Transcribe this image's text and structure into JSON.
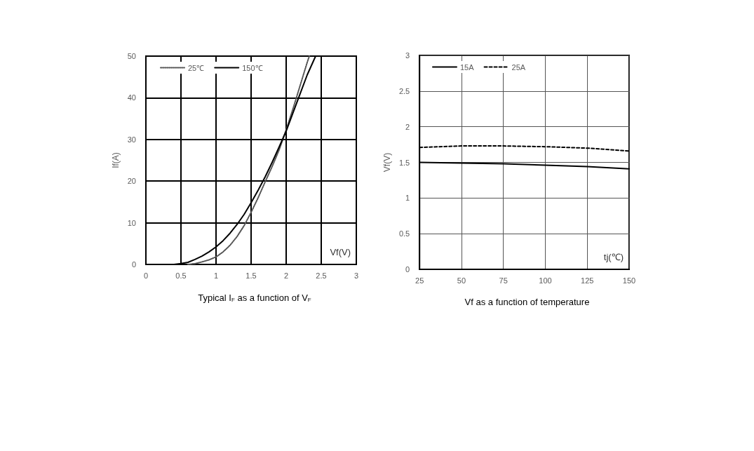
{
  "chart_data": [
    {
      "type": "line",
      "title": "Typical I$_{F}$ as a function of V$_{F}$",
      "xlabel": "Vf(V)",
      "ylabel": "If(A)",
      "xlim": [
        0,
        3
      ],
      "xticks": [
        0,
        0.5,
        1,
        1.5,
        2,
        2.5,
        3
      ],
      "ylim": [
        0,
        50
      ],
      "yticks": [
        0,
        10,
        20,
        30,
        40,
        50
      ],
      "grid": true,
      "legend": "top left",
      "marker": "none",
      "series": [
        {
          "name": "25℃",
          "color": "#555555",
          "line_style": "dotted",
          "x": [
            0.6,
            0.7,
            0.8,
            0.9,
            1.0,
            1.1,
            1.2,
            1.3,
            1.4,
            1.5,
            1.6,
            1.7,
            1.8,
            1.9,
            2.0,
            2.1,
            2.2,
            2.3,
            2.33
          ],
          "values": [
            0,
            0.2,
            0.6,
            1.1,
            1.8,
            3,
            4.6,
            6.7,
            9.3,
            12.5,
            16,
            19.8,
            23.5,
            27.5,
            32.3,
            37.5,
            43,
            48.5,
            50
          ]
        },
        {
          "name": "150℃",
          "color": "#000000",
          "line_style": "solid",
          "x": [
            0.4,
            0.5,
            0.6,
            0.7,
            0.8,
            0.9,
            1.0,
            1.1,
            1.2,
            1.3,
            1.4,
            1.5,
            1.6,
            1.7,
            1.8,
            1.9,
            2.0,
            2.1,
            2.2,
            2.3,
            2.42
          ],
          "values": [
            0,
            0.2,
            0.5,
            1.2,
            2,
            3,
            4.2,
            5.7,
            7.5,
            9.6,
            12,
            14.8,
            17.8,
            21,
            24.5,
            28.2,
            32,
            36.5,
            41,
            45.5,
            50
          ]
        }
      ]
    },
    {
      "type": "line",
      "title": "Vf as a function of temperature",
      "xlabel": "tj(℃)",
      "ylabel": "Vf(V)",
      "xlim": [
        25,
        150
      ],
      "xticks": [
        25,
        50,
        75,
        100,
        125,
        150
      ],
      "ylim": [
        0,
        3
      ],
      "yticks": [
        0,
        0.5,
        1,
        1.5,
        2,
        2.5,
        3
      ],
      "grid": true,
      "legend": "top left",
      "marker": "none",
      "series": [
        {
          "name": "15A",
          "color": "#000000",
          "line_style": "solid",
          "x": [
            25,
            50,
            75,
            100,
            125,
            150
          ],
          "values": [
            1.5,
            1.49,
            1.48,
            1.46,
            1.44,
            1.41
          ]
        },
        {
          "name": "25A",
          "color": "#000000",
          "line_style": "dashed",
          "x": [
            25,
            50,
            75,
            100,
            125,
            150
          ],
          "values": [
            1.71,
            1.73,
            1.73,
            1.72,
            1.7,
            1.66
          ]
        }
      ]
    }
  ]
}
